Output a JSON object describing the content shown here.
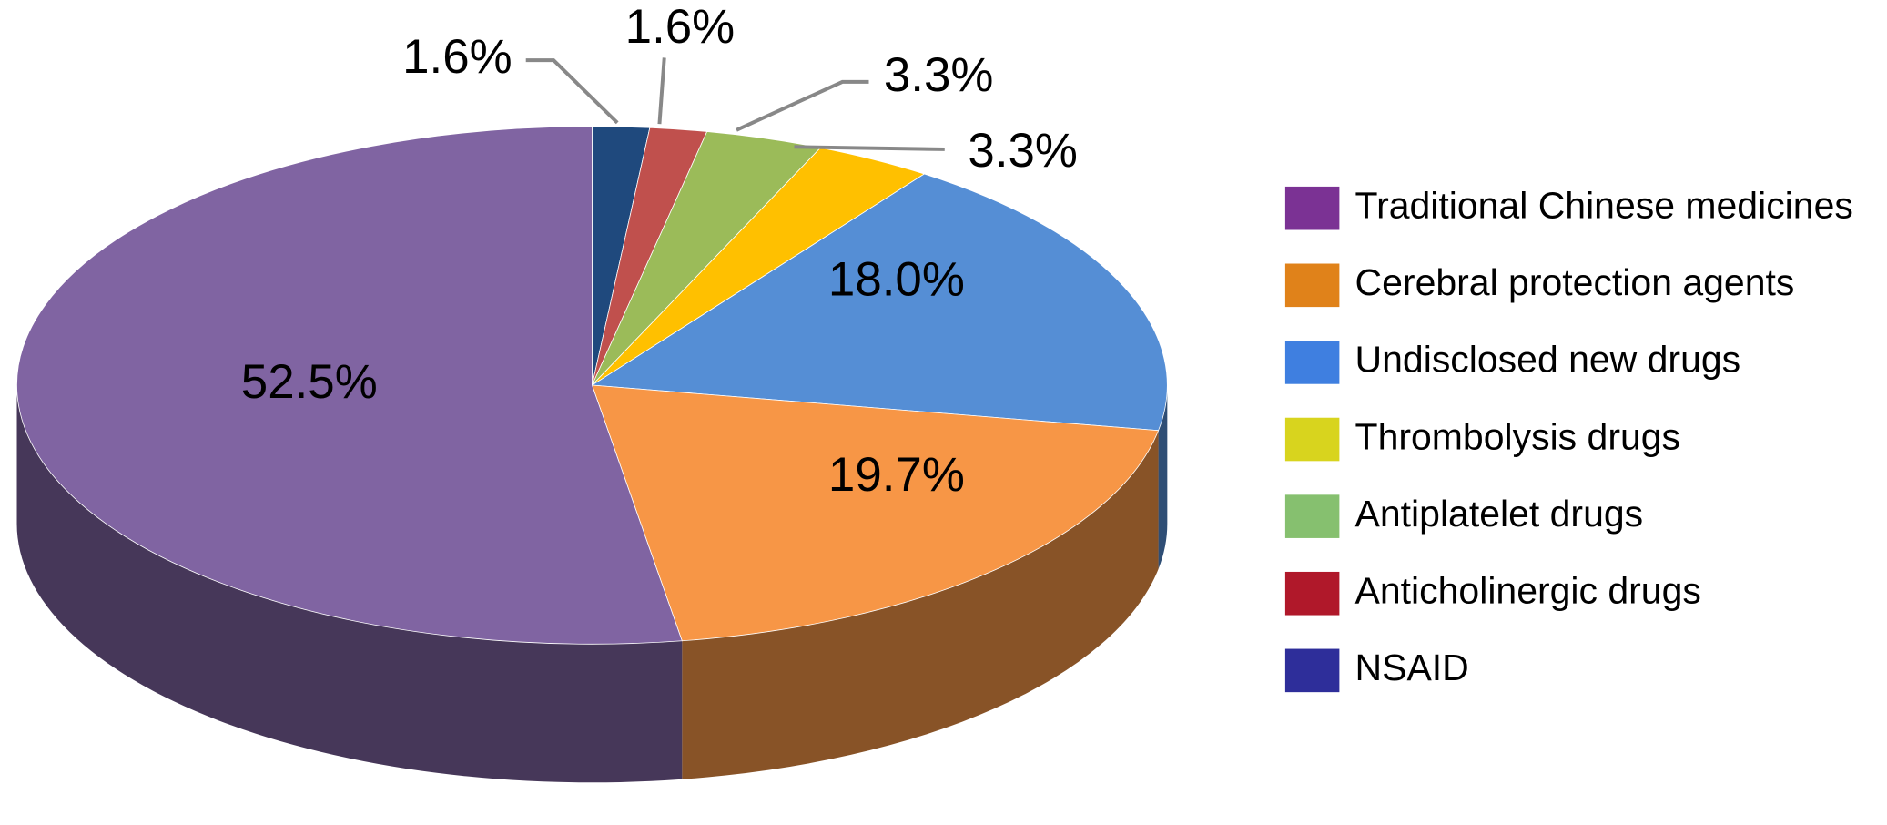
{
  "chart_data": {
    "type": "pie",
    "categories": [
      "Traditional Chinese medicines",
      "Cerebral protection agents",
      "Undisclosed new drugs",
      "Thrombolysis drugs",
      "Antiplatelet drugs",
      "Anticholinergic drugs",
      "NSAID"
    ],
    "values": [
      52.5,
      19.7,
      18.0,
      3.3,
      3.3,
      1.6,
      1.6
    ],
    "value_labels": [
      "52.5%",
      "19.7%",
      "18.0%",
      "3.3%",
      "3.3%",
      "1.6%",
      "1.6%"
    ],
    "colors": [
      "#8064a2",
      "#f79646",
      "#558ed5",
      "#ffc000",
      "#9bbb59",
      "#c0504d",
      "#1f497d"
    ],
    "legend_colors": [
      "#7b3294",
      "#e0821a",
      "#3f7fe0",
      "#d8d41e",
      "#86c06f",
      "#b0182a",
      "#2e2e9a"
    ],
    "legend": "right"
  }
}
